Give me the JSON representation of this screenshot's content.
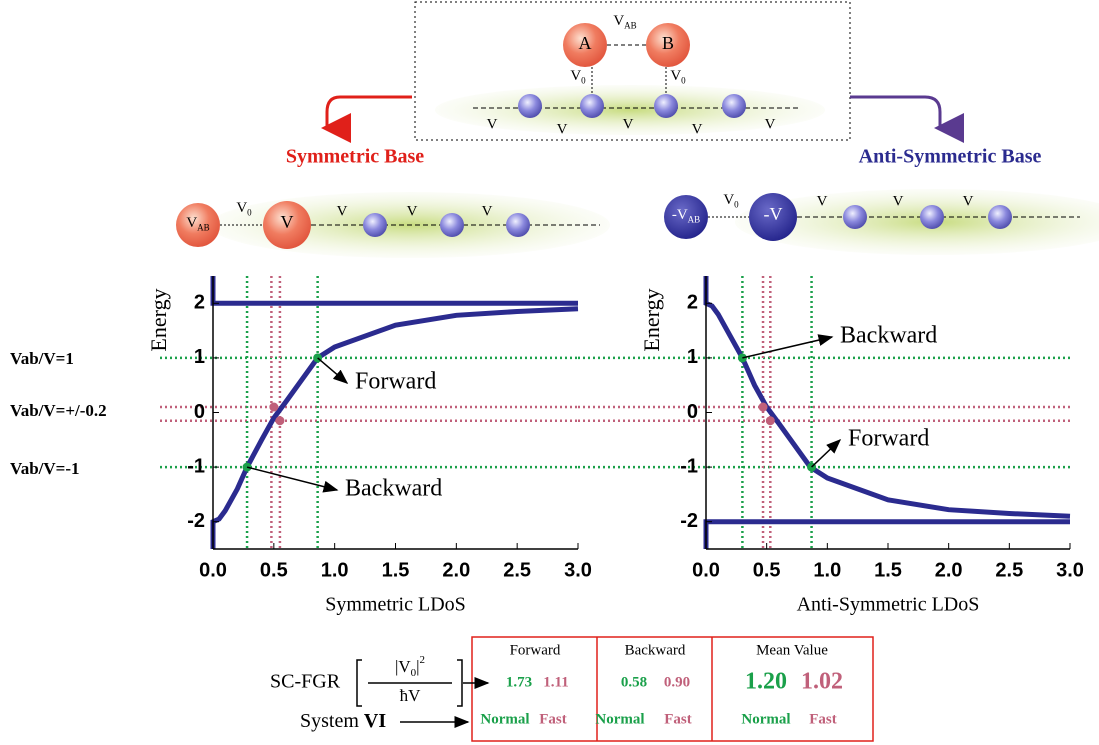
{
  "diagram": {
    "top_nodes": [
      "A",
      "B"
    ],
    "top_bond": {
      "main": "V",
      "sub": "AB"
    },
    "top_links": [
      {
        "main": "V",
        "sub": "0"
      },
      {
        "main": "V",
        "sub": "0"
      }
    ],
    "top_chain": [
      "V",
      "V",
      "V",
      "V",
      "V"
    ],
    "left_title": "Symmetric Base",
    "right_title": "Anti-Symmetric Base",
    "left_nodes": [
      {
        "main": "V",
        "sub": "AB"
      },
      {
        "main": "V",
        "sub": ""
      }
    ],
    "left_link": {
      "main": "V",
      "sub": "0"
    },
    "left_chain": [
      "V",
      "V",
      "V"
    ],
    "right_nodes": [
      {
        "main": "-V",
        "sub": "AB"
      },
      {
        "main": "-V",
        "sub": ""
      }
    ],
    "right_link": {
      "main": "V",
      "sub": "0"
    },
    "right_chain": [
      "V",
      "V",
      "V"
    ]
  },
  "row_labels": [
    "Vab/V=1",
    "Vab/V=+/-0.2",
    "Vab/V=-1"
  ],
  "chart_data": [
    {
      "type": "line",
      "xlabel": "Symmetric LDoS",
      "ylabel": "Energy",
      "xlim": [
        0,
        3
      ],
      "ylim": [
        -2.5,
        2.5
      ],
      "xticks": [
        {
          "value": 0,
          "label": "0.0"
        },
        {
          "value": 0.5,
          "label": "0.5"
        },
        {
          "value": 1,
          "label": "1.0"
        },
        {
          "value": 1.5,
          "label": "1.5"
        },
        {
          "value": 2,
          "label": "2.0"
        },
        {
          "value": 2.5,
          "label": "2.5"
        },
        {
          "value": 3,
          "label": "3.0"
        }
      ],
      "yticks": [
        -2,
        -1,
        0,
        1,
        2
      ],
      "series": [
        {
          "color": "#2b2b8f",
          "x": [
            0,
            0,
            0.05,
            0.1,
            0.2,
            0.28,
            0.4,
            0.5,
            0.6,
            0.86,
            1.0,
            1.5,
            2.0,
            2.5,
            3.0
          ],
          "y": [
            -2.5,
            -2,
            -1.95,
            -1.8,
            -1.4,
            -1,
            -0.5,
            -0.1,
            0.2,
            1,
            1.2,
            1.6,
            1.78,
            1.85,
            1.9
          ]
        },
        {
          "color": "#2b2b8f",
          "x": [
            0,
            0,
            3
          ],
          "y": [
            2.5,
            2,
            2
          ]
        }
      ],
      "hlines": [
        {
          "y": 1,
          "color": "#1aa04a"
        },
        {
          "y": 0.1,
          "color": "#c0607a"
        },
        {
          "y": -0.15,
          "color": "#c0607a"
        },
        {
          "y": -1,
          "color": "#1aa04a"
        }
      ],
      "vlines": [
        {
          "x": 0.28,
          "color": "#1aa04a"
        },
        {
          "x": 0.48,
          "color": "#c0607a"
        },
        {
          "x": 0.55,
          "color": "#c0607a"
        },
        {
          "x": 0.86,
          "color": "#1aa04a"
        }
      ],
      "markers": [
        {
          "x": 0.86,
          "y": 1,
          "color": "#1aa04a"
        },
        {
          "x": 0.28,
          "y": -1,
          "color": "#1aa04a"
        },
        {
          "x": 0.5,
          "y": 0.1,
          "color": "#c0607a"
        },
        {
          "x": 0.55,
          "y": -0.15,
          "color": "#c0607a"
        }
      ],
      "annotations": [
        "Forward",
        "Backward"
      ]
    },
    {
      "type": "line",
      "xlabel": "Anti-Symmetric LDoS",
      "ylabel": "Energy",
      "xlim": [
        0,
        3
      ],
      "ylim": [
        -2.5,
        2.5
      ],
      "xticks": [
        {
          "value": 0,
          "label": "0.0"
        },
        {
          "value": 0.5,
          "label": "0.5"
        },
        {
          "value": 1,
          "label": "1.0"
        },
        {
          "value": 1.5,
          "label": "1.5"
        },
        {
          "value": 2,
          "label": "2.0"
        },
        {
          "value": 2.5,
          "label": "2.5"
        },
        {
          "value": 3,
          "label": "3.0"
        }
      ],
      "yticks": [
        -2,
        -1,
        0,
        1,
        2
      ],
      "series": [
        {
          "color": "#2b2b8f",
          "x": [
            0,
            0,
            0.05,
            0.1,
            0.2,
            0.3,
            0.4,
            0.5,
            0.6,
            0.86,
            1.0,
            1.5,
            2.0,
            2.5,
            3.0
          ],
          "y": [
            2.5,
            2,
            1.95,
            1.8,
            1.4,
            1,
            0.5,
            0.1,
            -0.2,
            -1,
            -1.2,
            -1.6,
            -1.78,
            -1.85,
            -1.9
          ]
        },
        {
          "color": "#2b2b8f",
          "x": [
            0,
            0,
            3
          ],
          "y": [
            -2.5,
            -2,
            -2
          ]
        }
      ],
      "hlines": [
        {
          "y": 1,
          "color": "#1aa04a"
        },
        {
          "y": 0.1,
          "color": "#c0607a"
        },
        {
          "y": -0.15,
          "color": "#c0607a"
        },
        {
          "y": -1,
          "color": "#1aa04a"
        }
      ],
      "vlines": [
        {
          "x": 0.3,
          "color": "#1aa04a"
        },
        {
          "x": 0.47,
          "color": "#c0607a"
        },
        {
          "x": 0.53,
          "color": "#c0607a"
        },
        {
          "x": 0.87,
          "color": "#1aa04a"
        }
      ],
      "markers": [
        {
          "x": 0.3,
          "y": 1,
          "color": "#1aa04a"
        },
        {
          "x": 0.87,
          "y": -1,
          "color": "#1aa04a"
        },
        {
          "x": 0.47,
          "y": 0.1,
          "color": "#c0607a"
        },
        {
          "x": 0.53,
          "y": -0.15,
          "color": "#c0607a"
        }
      ],
      "annotations": [
        "Backward",
        "Forward"
      ]
    }
  ],
  "formula": {
    "lhs": "SC-FGR",
    "numerator": "|V",
    "numerator_sub": "0",
    "numerator_end": "|",
    "numerator_sup": "2",
    "denominator": "ħV"
  },
  "system_label": {
    "text": "System",
    "bold": "VI"
  },
  "table": {
    "groups": [
      {
        "title": "Forward",
        "values": [
          "1.73",
          "1.11"
        ],
        "labels": [
          "Normal",
          "Fast"
        ]
      },
      {
        "title": "Backward",
        "values": [
          "0.58",
          "0.90"
        ],
        "labels": [
          "Normal",
          "Fast"
        ]
      },
      {
        "title": "Mean Value",
        "values": [
          "1.20",
          "1.02"
        ],
        "labels": [
          "Normal",
          "Fast"
        ]
      }
    ]
  }
}
